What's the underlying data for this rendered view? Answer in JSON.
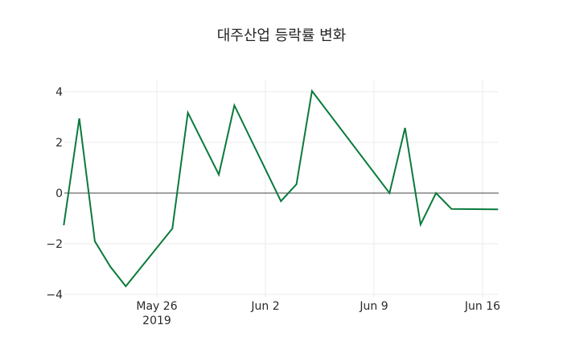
{
  "chart_data": {
    "type": "line",
    "title": "대주산업 등락률 변화",
    "xlabel": "",
    "ylabel": "",
    "ylim": [
      -4.4,
      4.4
    ],
    "grid": true,
    "legend": null,
    "line_color": "#0a7a3c",
    "x_ticks": [
      {
        "label": "May 26",
        "sublabel": "2019",
        "date": "2019-05-26"
      },
      {
        "label": "Jun 2",
        "sublabel": "",
        "date": "2019-06-02"
      },
      {
        "label": "Jun 9",
        "sublabel": "",
        "date": "2019-06-09"
      },
      {
        "label": "Jun 16",
        "sublabel": "",
        "date": "2019-06-16"
      }
    ],
    "y_ticks": [
      4,
      2,
      0,
      -2,
      -4
    ],
    "y_tick_labels": [
      "4",
      "2",
      "0",
      "−2",
      "−4"
    ],
    "x": [
      "2019-05-20",
      "2019-05-21",
      "2019-05-22",
      "2019-05-23",
      "2019-05-24",
      "2019-05-27",
      "2019-05-28",
      "2019-05-30",
      "2019-05-31",
      "2019-06-03",
      "2019-06-04",
      "2019-06-05",
      "2019-06-10",
      "2019-06-11",
      "2019-06-12",
      "2019-06-13",
      "2019-06-14",
      "2019-06-17"
    ],
    "series": [
      {
        "name": "등락률",
        "values": [
          -1.27,
          2.95,
          -1.9,
          -2.9,
          -3.68,
          -1.4,
          3.17,
          0.73,
          3.46,
          -0.32,
          0.35,
          4.03,
          0.0,
          2.57,
          -1.24,
          0.0,
          -0.63,
          -0.64
        ]
      }
    ]
  }
}
